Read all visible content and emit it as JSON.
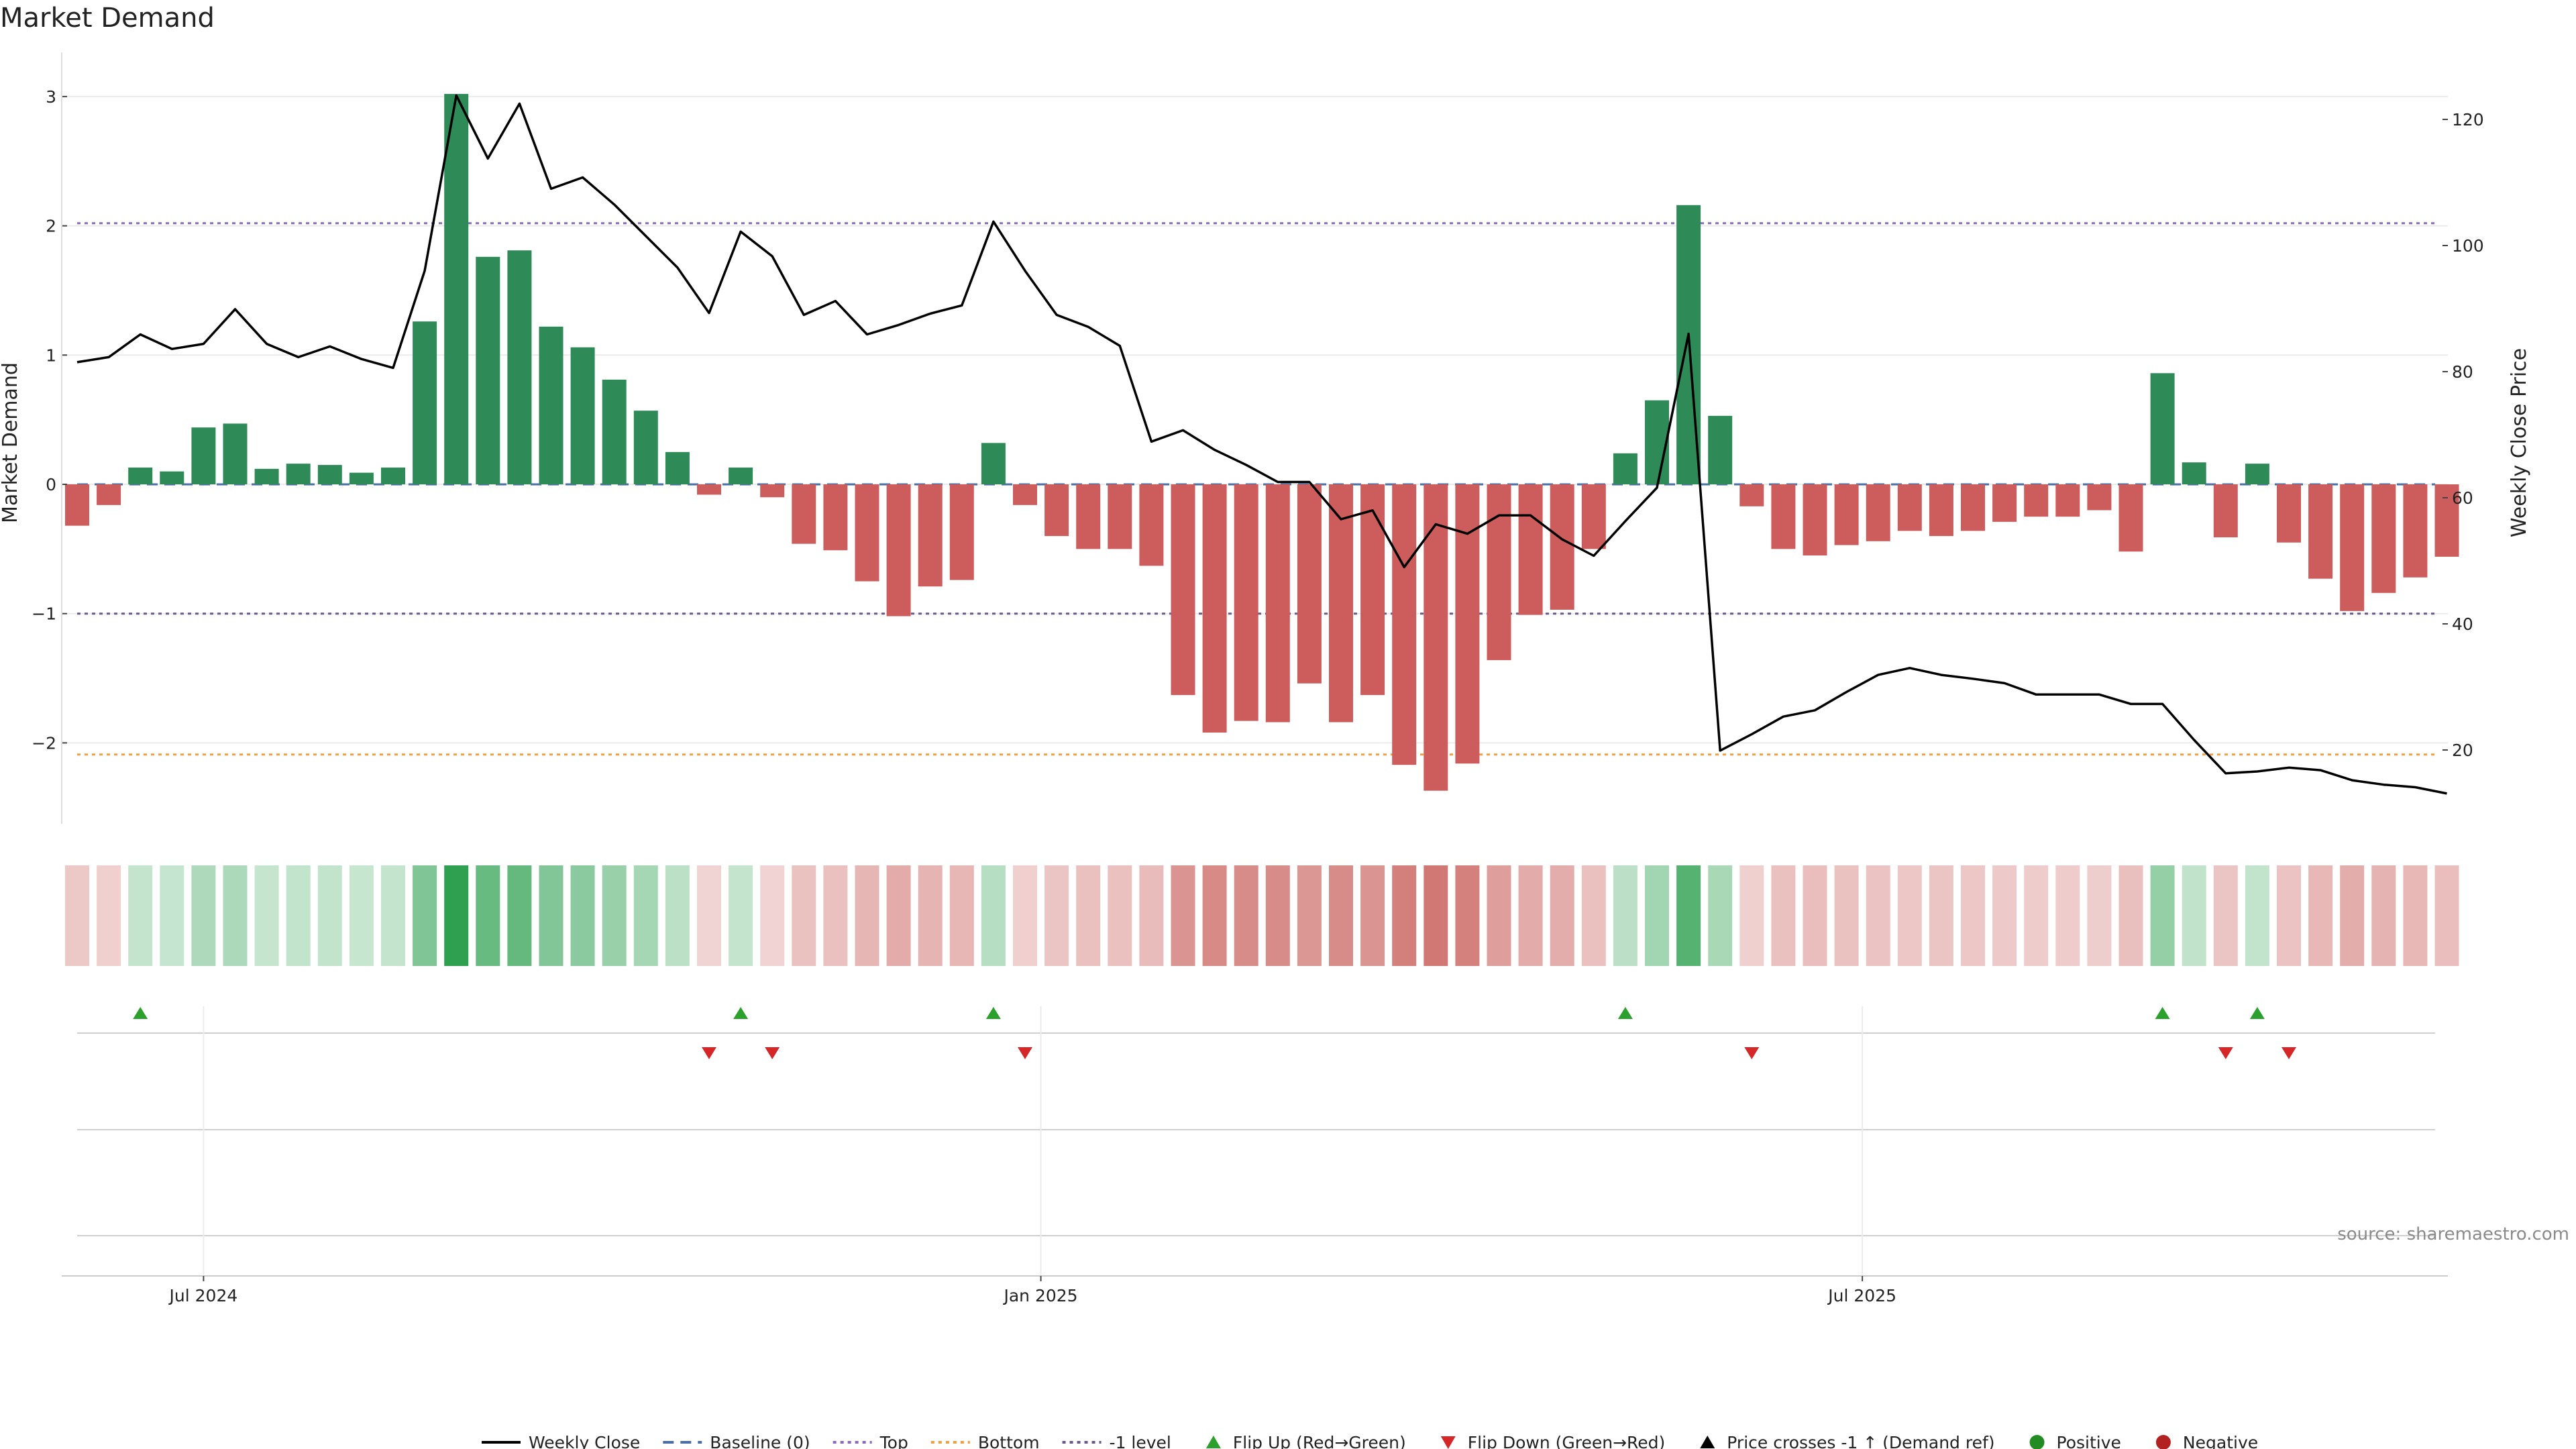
{
  "chart_data": {
    "type": "bar",
    "title": "Market Demand",
    "source": "source: sharemaestro.com",
    "ylabel_left": "Market Demand",
    "ylabel_right": "Weekly Close Price",
    "ylim_left": [
      -2.65,
      3.05
    ],
    "ylim_right": [
      9,
      126
    ],
    "yticks_left": [
      {
        "v": 3,
        "label": "3"
      },
      {
        "v": 2,
        "label": "2"
      },
      {
        "v": 1,
        "label": "1"
      },
      {
        "v": 0,
        "label": "0"
      },
      {
        "v": -1,
        "label": "−1"
      },
      {
        "v": -2,
        "label": "−2"
      }
    ],
    "yticks_right": [
      {
        "v": 120,
        "label": "120"
      },
      {
        "v": 100,
        "label": "100"
      },
      {
        "v": 80,
        "label": "80"
      },
      {
        "v": 60,
        "label": "60"
      },
      {
        "v": 40,
        "label": "40"
      },
      {
        "v": 20,
        "label": "20"
      }
    ],
    "xticks": [
      {
        "index": 4,
        "label": "Jul 2024"
      },
      {
        "index": 30.5,
        "label": "Jan 2025"
      },
      {
        "index": 56.5,
        "label": "Jul 2025"
      }
    ],
    "reference_lines": [
      {
        "name": "Baseline (0)",
        "value": 0,
        "color": "#4a6fa5",
        "dash": "16,10"
      },
      {
        "name": "Top",
        "value": 2.02,
        "color": "#8a6bb8",
        "dash": "5,6"
      },
      {
        "name": "Bottom",
        "value": -2.09,
        "color": "#f0a040",
        "dash": "5,6"
      },
      {
        "name": "-1 level",
        "value": -1.0,
        "color": "#6a5a8a",
        "dash": "5,6"
      }
    ],
    "grid": true,
    "legend_position": "bottom",
    "colors": {
      "positive": "#2e8b57",
      "negative": "#cd5c5c",
      "price_line": "#000000",
      "flip_up": "#2ca02c",
      "flip_down": "#d62728"
    },
    "series": [
      {
        "name": "Market Demand",
        "kind": "bar",
        "values": [
          -0.32,
          -0.16,
          0.13,
          0.1,
          0.44,
          0.47,
          0.12,
          0.16,
          0.15,
          0.09,
          0.13,
          1.26,
          3.02,
          1.76,
          1.81,
          1.22,
          1.06,
          0.81,
          0.57,
          0.25,
          -0.08,
          0.13,
          -0.1,
          -0.46,
          -0.51,
          -0.75,
          -1.02,
          -0.79,
          -0.74,
          0.32,
          -0.16,
          -0.4,
          -0.5,
          -0.5,
          -0.63,
          -1.63,
          -1.92,
          -1.83,
          -1.84,
          -1.54,
          -1.84,
          -1.63,
          -2.17,
          -2.37,
          -2.16,
          -1.36,
          -1.01,
          -0.97,
          -0.5,
          0.24,
          0.65,
          2.16,
          0.53,
          -0.17,
          -0.5,
          -0.55,
          -0.47,
          -0.44,
          -0.36,
          -0.4,
          -0.36,
          -0.29,
          -0.25,
          -0.25,
          -0.2,
          -0.52,
          0.86,
          0.17,
          -0.41,
          0.16,
          -0.45,
          -0.73,
          -0.98,
          -0.84,
          -0.72,
          -0.56
        ]
      },
      {
        "name": "Weekly Close",
        "kind": "line",
        "values": [
          81.5,
          82.3,
          85.9,
          83.6,
          84.4,
          89.9,
          84.4,
          82.3,
          84.0,
          82.0,
          80.6,
          96.0,
          123.8,
          113.8,
          122.5,
          109.0,
          110.8,
          106.5,
          101.5,
          96.5,
          89.3,
          102.2,
          98.3,
          89.0,
          91.2,
          85.9,
          87.4,
          89.2,
          90.5,
          103.8,
          96.0,
          89.0,
          87.1,
          84.1,
          68.9,
          70.7,
          67.6,
          65.2,
          62.5,
          62.5,
          56.6,
          58.0,
          49.0,
          55.8,
          54.3,
          57.2,
          57.2,
          53.4,
          50.8,
          56.3,
          61.6,
          86.0,
          19.9,
          22.5,
          25.3,
          26.3,
          29.2,
          31.9,
          33.0,
          31.9,
          31.3,
          30.6,
          28.8,
          28.8,
          28.8,
          27.3,
          27.3,
          21.6,
          16.3,
          16.6,
          17.2,
          16.8,
          15.2,
          14.5,
          14.1,
          13.1
        ]
      },
      {
        "name": "Demand intensity strip",
        "kind": "heat_strip",
        "values": [
          -0.32,
          -0.16,
          0.13,
          0.1,
          0.44,
          0.47,
          0.12,
          0.16,
          0.15,
          0.09,
          0.13,
          1.26,
          3.02,
          1.76,
          1.81,
          1.22,
          1.06,
          0.81,
          0.57,
          0.25,
          -0.08,
          0.13,
          -0.1,
          -0.46,
          -0.51,
          -0.75,
          -1.02,
          -0.79,
          -0.74,
          0.32,
          -0.16,
          -0.4,
          -0.5,
          -0.5,
          -0.63,
          -1.63,
          -1.92,
          -1.83,
          -1.84,
          -1.54,
          -1.84,
          -1.63,
          -2.17,
          -2.37,
          -2.16,
          -1.36,
          -1.01,
          -0.97,
          -0.5,
          0.24,
          0.65,
          2.16,
          0.53,
          -0.17,
          -0.5,
          -0.55,
          -0.47,
          -0.44,
          -0.36,
          -0.4,
          -0.36,
          -0.29,
          -0.25,
          -0.25,
          -0.2,
          -0.52,
          0.86,
          0.17,
          -0.41,
          0.16,
          -0.45,
          -0.73,
          -0.98,
          -0.84,
          -0.72,
          -0.56
        ]
      },
      {
        "name": "Flip Up (Red→Green)",
        "kind": "marker_up",
        "indices": [
          2,
          21,
          29,
          49,
          66,
          69
        ]
      },
      {
        "name": "Flip Down (Green→Red)",
        "kind": "marker_down",
        "indices": [
          20,
          22,
          30,
          53,
          68,
          70
        ]
      }
    ],
    "legend": [
      {
        "label": "Weekly Close",
        "kind": "line",
        "color": "#000000"
      },
      {
        "label": "Baseline (0)",
        "kind": "dash",
        "color": "#4a6fa5"
      },
      {
        "label": "Top",
        "kind": "dot",
        "color": "#8a6bb8"
      },
      {
        "label": "Bottom",
        "kind": "dot",
        "color": "#f0a040"
      },
      {
        "label": "-1 level",
        "kind": "dot",
        "color": "#6a5a8a"
      },
      {
        "label": "Flip Up (Red→Green)",
        "kind": "tri-up",
        "color": "#2ca02c"
      },
      {
        "label": "Flip Down (Green→Red)",
        "kind": "tri-down",
        "color": "#d62728"
      },
      {
        "label": "Price crosses -1 ↑ (Demand ref)",
        "kind": "tri-up",
        "color": "#000000"
      },
      {
        "label": "Positive",
        "kind": "circle",
        "color": "#228b22"
      },
      {
        "label": "Negative",
        "kind": "circle",
        "color": "#b22222"
      }
    ]
  }
}
